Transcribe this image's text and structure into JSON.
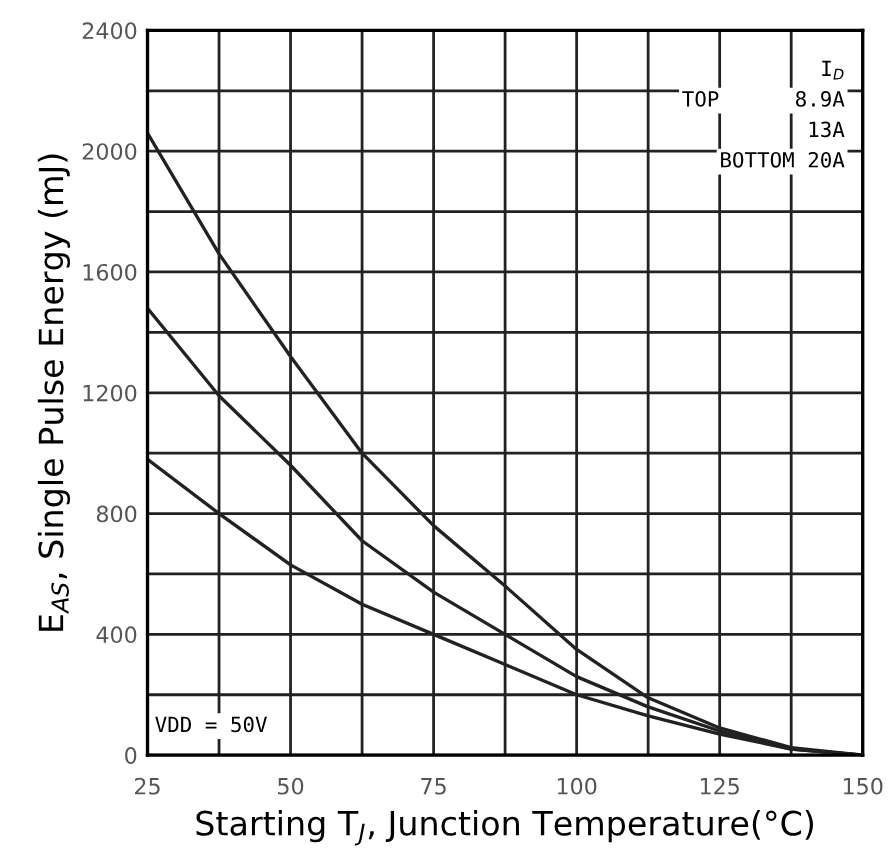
{
  "chart_data": {
    "type": "line",
    "xlabel": "Starting T$_{J}$, Junction Temperature(°C)",
    "ylabel": "E$_{AS}$, Single Pulse Energy (mJ)",
    "x": [
      25,
      37.5,
      50,
      62.5,
      75,
      87.5,
      100,
      112.5,
      125,
      137.5,
      150
    ],
    "series": [
      {
        "color": "#222222",
        "values": [
          2060,
          1660,
          1320,
          1000,
          760,
          560,
          350,
          190,
          90,
          25,
          0
        ]
      },
      {
        "color": "#222222",
        "values": [
          1480,
          1190,
          960,
          710,
          540,
          400,
          260,
          160,
          80,
          20,
          0
        ]
      },
      {
        "color": "#222222",
        "values": [
          980,
          800,
          630,
          500,
          400,
          300,
          200,
          130,
          70,
          20,
          0
        ]
      }
    ],
    "xlim": [
      25,
      150
    ],
    "ylim": [
      0,
      2400
    ],
    "xticks": [
      25,
      {
        "value": 37.5,
        "label": null
      },
      50,
      {
        "value": 62.5,
        "label": null
      },
      75,
      {
        "value": 87.5,
        "label": null
      },
      100,
      {
        "value": 112.5,
        "label": null
      },
      125,
      {
        "value": 137.5,
        "label": null
      },
      150
    ],
    "yticks": [
      0,
      {
        "value": 200,
        "label": null
      },
      400,
      {
        "value": 600,
        "label": null
      },
      800,
      {
        "value": 1000,
        "label": null
      },
      1200,
      {
        "value": 1400,
        "label": null
      },
      1600,
      {
        "value": 1800,
        "label": null
      },
      2000,
      {
        "value": 2200,
        "label": null
      },
      2400
    ],
    "grid": true,
    "marker": "none",
    "line_style": "solid",
    "annotations": [
      "I$_{D}$",
      "TOP      8.9A",
      "13A",
      "BOTTOM 20A",
      "VDD = 50V"
    ]
  }
}
